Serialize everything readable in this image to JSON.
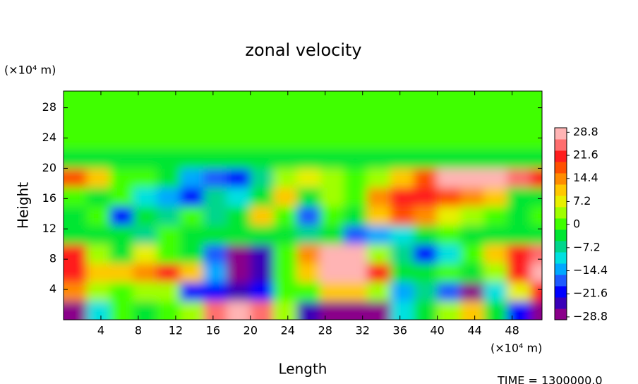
{
  "chart_data": {
    "type": "heatmap",
    "title": "zonal velocity",
    "x_label": "Length",
    "y_label": "Height",
    "x_unit": "(×10⁴ m)",
    "y_unit": "(×10⁴ m)",
    "footer": "TIME = 1300000.0",
    "xlim": [
      0,
      51.2
    ],
    "ylim": [
      0,
      30.2
    ],
    "xticks": [
      4,
      8,
      12,
      16,
      20,
      24,
      28,
      32,
      36,
      40,
      44,
      48
    ],
    "yticks": [
      4,
      8,
      12,
      16,
      20,
      24,
      28
    ],
    "x": [
      1.25,
      3.75,
      6.25,
      8.75,
      11.25,
      13.75,
      16.25,
      18.75,
      21.25,
      23.75,
      26.25,
      28.75,
      31.25,
      33.75,
      36.25,
      38.75,
      41.25,
      43.75,
      46.25,
      48.75,
      51.25
    ],
    "y": [
      1.25,
      3.75,
      6.25,
      8.75,
      11.25,
      13.75,
      16.25,
      18.75,
      21.25,
      23.75,
      26.25,
      28.75
    ],
    "z": [
      [
        -28,
        -10,
        0,
        -5,
        0,
        5,
        25,
        30,
        25,
        5,
        -25,
        -28,
        -28,
        -28,
        -10,
        -5,
        5,
        10,
        -5,
        -20,
        -28
      ],
      [
        15,
        5,
        0,
        5,
        3,
        -22,
        -20,
        -25,
        -22,
        2,
        0,
        10,
        12,
        5,
        -15,
        -8,
        -18,
        -28,
        -10,
        8,
        22
      ],
      [
        22,
        10,
        12,
        15,
        20,
        10,
        -15,
        -28,
        -25,
        0,
        10,
        30,
        30,
        20,
        -5,
        -5,
        0,
        -5,
        5,
        20,
        28
      ],
      [
        20,
        5,
        -5,
        8,
        0,
        -2,
        -18,
        -28,
        -25,
        2,
        15,
        30,
        30,
        5,
        -8,
        -20,
        -10,
        2,
        10,
        22,
        25
      ],
      [
        -2,
        -5,
        -2,
        -8,
        0,
        -3,
        -2,
        -5,
        -5,
        -2,
        -8,
        -5,
        -18,
        -15,
        -10,
        -3,
        0,
        -2,
        -3,
        -5,
        -5
      ],
      [
        -5,
        0,
        -20,
        -5,
        -8,
        0,
        -8,
        -5,
        10,
        0,
        -18,
        2,
        -5,
        10,
        18,
        14,
        8,
        5,
        2,
        -3,
        0
      ],
      [
        2,
        -5,
        0,
        -10,
        -15,
        -20,
        -8,
        -10,
        -5,
        10,
        -5,
        5,
        0,
        15,
        20,
        22,
        18,
        15,
        10,
        -2,
        -5
      ],
      [
        18,
        10,
        2,
        0,
        -5,
        -15,
        -18,
        -20,
        -8,
        4,
        6,
        3,
        0,
        5,
        12,
        18,
        30,
        30,
        28,
        24,
        20
      ],
      [
        -3,
        -3,
        -3,
        -3,
        -3,
        -3,
        -3,
        -3,
        -3,
        -3,
        -3,
        -3,
        -3,
        -3,
        -3,
        -3,
        -3,
        -3,
        -3,
        -3,
        -3
      ],
      [
        2,
        2,
        2,
        2,
        2,
        2,
        2,
        2,
        2,
        2,
        2,
        2,
        2,
        2,
        2,
        2,
        2,
        2,
        2,
        2,
        2
      ],
      [
        1,
        1,
        1,
        1,
        1,
        1,
        1,
        1,
        1,
        1,
        1,
        1,
        1,
        1,
        1,
        1,
        1,
        1,
        1,
        1,
        1
      ],
      [
        0,
        0,
        0,
        0,
        0,
        0,
        0,
        0,
        0,
        0,
        0,
        0,
        0,
        0,
        0,
        0,
        0,
        0,
        0,
        0,
        0
      ]
    ],
    "zlim": [
      -29.7,
      30.2
    ],
    "zticks": [
      {
        "value": -28.8,
        "label": "−28.8"
      },
      {
        "value": -21.6,
        "label": "−21.6"
      },
      {
        "value": -14.4,
        "label": "−14.4"
      },
      {
        "value": -7.2,
        "label": "−7.2"
      },
      0,
      7.2,
      14.4,
      21.6,
      28.8
    ],
    "colors": [
      "#8a008a",
      "#3a00b8",
      "#0000ff",
      "#1e5aff",
      "#00a8ff",
      "#00e0e0",
      "#00d68c",
      "#00e632",
      "#40ff00",
      "#a0ff00",
      "#e8f000",
      "#ffc800",
      "#ff8c00",
      "#ff5000",
      "#ff1e1e",
      "#ff6e6e",
      "#ffb4b4"
    ]
  }
}
